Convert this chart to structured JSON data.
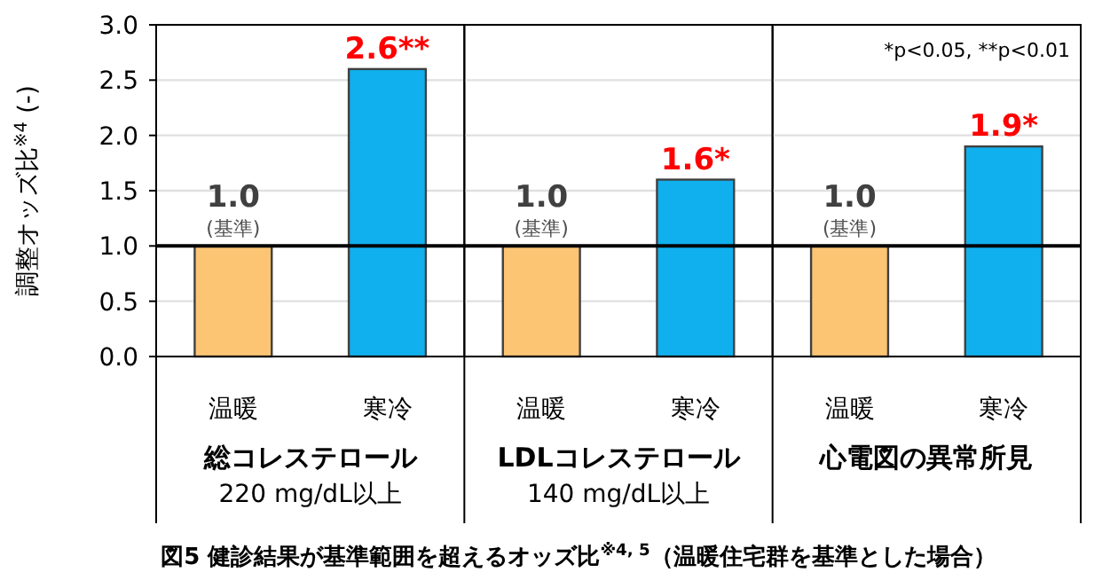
{
  "chart_data": [
    {
      "type": "bar",
      "title": "図5 健診結果が基準範囲を超えるオッズ比$^{※4, 5}$（温暖住宅群を基準とした場合）",
      "ylabel": "調整オッズ比$^{※4}$ (-)",
      "xlabel": "総コレステロール",
      "categories": [
        "温暖",
        "寒冷"
      ],
      "values": [
        1.0,
        2.6
      ],
      "colors": [
        "#fcc574",
        "#10b0ee"
      ],
      "value_labels": [
        "1.0",
        "2.6**"
      ],
      "annotations": [
        {
          "text": "(基準)",
          "x": "温暖",
          "y": 1.0
        },
        "220 mg/dL以上"
      ],
      "ylim": [
        0,
        3
      ],
      "yticks": [
        {
          "value": 0,
          "label": "0.0"
        },
        {
          "value": 0.5,
          "label": "0.5"
        },
        {
          "value": 1,
          "label": "1.0"
        },
        {
          "value": 1.5,
          "label": "1.5"
        },
        {
          "value": 2,
          "label": "2.0"
        },
        {
          "value": 2.5,
          "label": "2.5"
        },
        {
          "value": 3,
          "label": "3.0"
        }
      ],
      "ref_lines": [
        {
          "axis": "y",
          "value": 1.0,
          "color": "#000000"
        }
      ],
      "grid": "y"
    },
    {
      "type": "bar",
      "xlabel": "LDLコレステロール",
      "categories": [
        "温暖",
        "寒冷"
      ],
      "values": [
        1.0,
        1.6
      ],
      "colors": [
        "#fcc574",
        "#10b0ee"
      ],
      "value_labels": [
        "1.0",
        "1.6*"
      ],
      "annotations": [
        {
          "text": "(基準)",
          "x": "温暖",
          "y": 1.0
        },
        "140 mg/dL以上"
      ],
      "ylim": [
        0,
        3
      ],
      "ref_lines": [
        {
          "axis": "y",
          "value": 1.0,
          "color": "#000000"
        }
      ],
      "grid": "y",
      "tick_labels": "x"
    },
    {
      "type": "bar",
      "xlabel": "心電図の異常所見",
      "categories": [
        "温暖",
        "寒冷"
      ],
      "values": [
        1.0,
        1.9
      ],
      "colors": [
        "#fcc574",
        "#10b0ee"
      ],
      "value_labels": [
        "1.0",
        "1.9*"
      ],
      "annotations": [
        {
          "text": "(基準)",
          "x": "温暖",
          "y": 1.0
        },
        "*p<0.05, **p<0.01"
      ],
      "ylim": [
        0,
        3
      ],
      "ref_lines": [
        {
          "axis": "y",
          "value": 1.0,
          "color": "#000000"
        }
      ],
      "grid": "y",
      "tick_labels": "x"
    }
  ]
}
